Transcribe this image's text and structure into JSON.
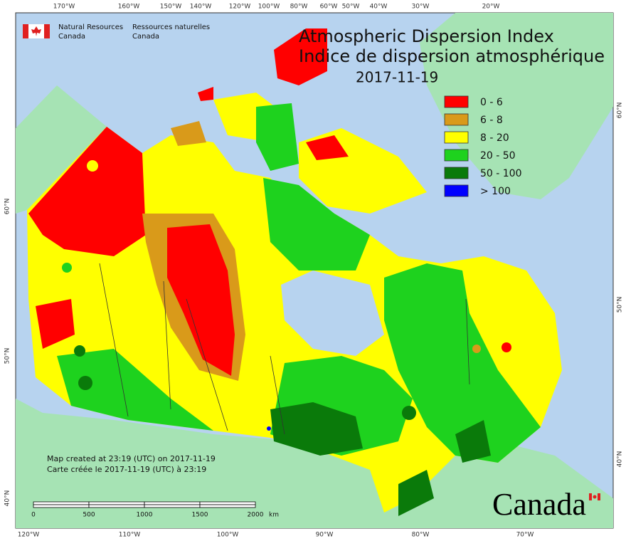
{
  "header": {
    "org_en": "Natural Resources",
    "org_en2": "Canada",
    "org_fr": "Ressources naturelles",
    "org_fr2": "Canada"
  },
  "title": {
    "en": "Atmospheric Dispersion Index",
    "fr": "Indice de dispersion atmosphérique",
    "date": "2017-11-19"
  },
  "legend": [
    {
      "label": "0 - 6",
      "color": "#ff0000"
    },
    {
      "label": "6 - 8",
      "color": "#d99a1a"
    },
    {
      "label": "8 - 20",
      "color": "#ffff00"
    },
    {
      "label": "20 - 50",
      "color": "#1ed21e"
    },
    {
      "label": "50 - 100",
      "color": "#0a7a0a"
    },
    {
      "label": "> 100",
      "color": "#0000ff"
    }
  ],
  "graticule": {
    "top": [
      "170°W",
      "160°W",
      "150°W",
      "140°W",
      "120°W",
      "100°W",
      "80°W",
      "60°W",
      "50°W",
      "40°W",
      "30°W",
      "20°W"
    ],
    "bottom": [
      "120°W",
      "110°W",
      "100°W",
      "90°W",
      "80°W",
      "70°W"
    ],
    "left": [
      "60°N",
      "50°N",
      "40°N"
    ],
    "right": [
      "60°N",
      "50°N",
      "40°N"
    ]
  },
  "notes": [
    "Map created at 23:19 (UTC) on 2017-11-19",
    "Carte créée le 2017-11-19 (UTC) à 23:19"
  ],
  "scale": {
    "labels": [
      "0",
      "500",
      "1000",
      "1500",
      "2000"
    ],
    "unit": "km"
  },
  "wordmark": "Canada"
}
